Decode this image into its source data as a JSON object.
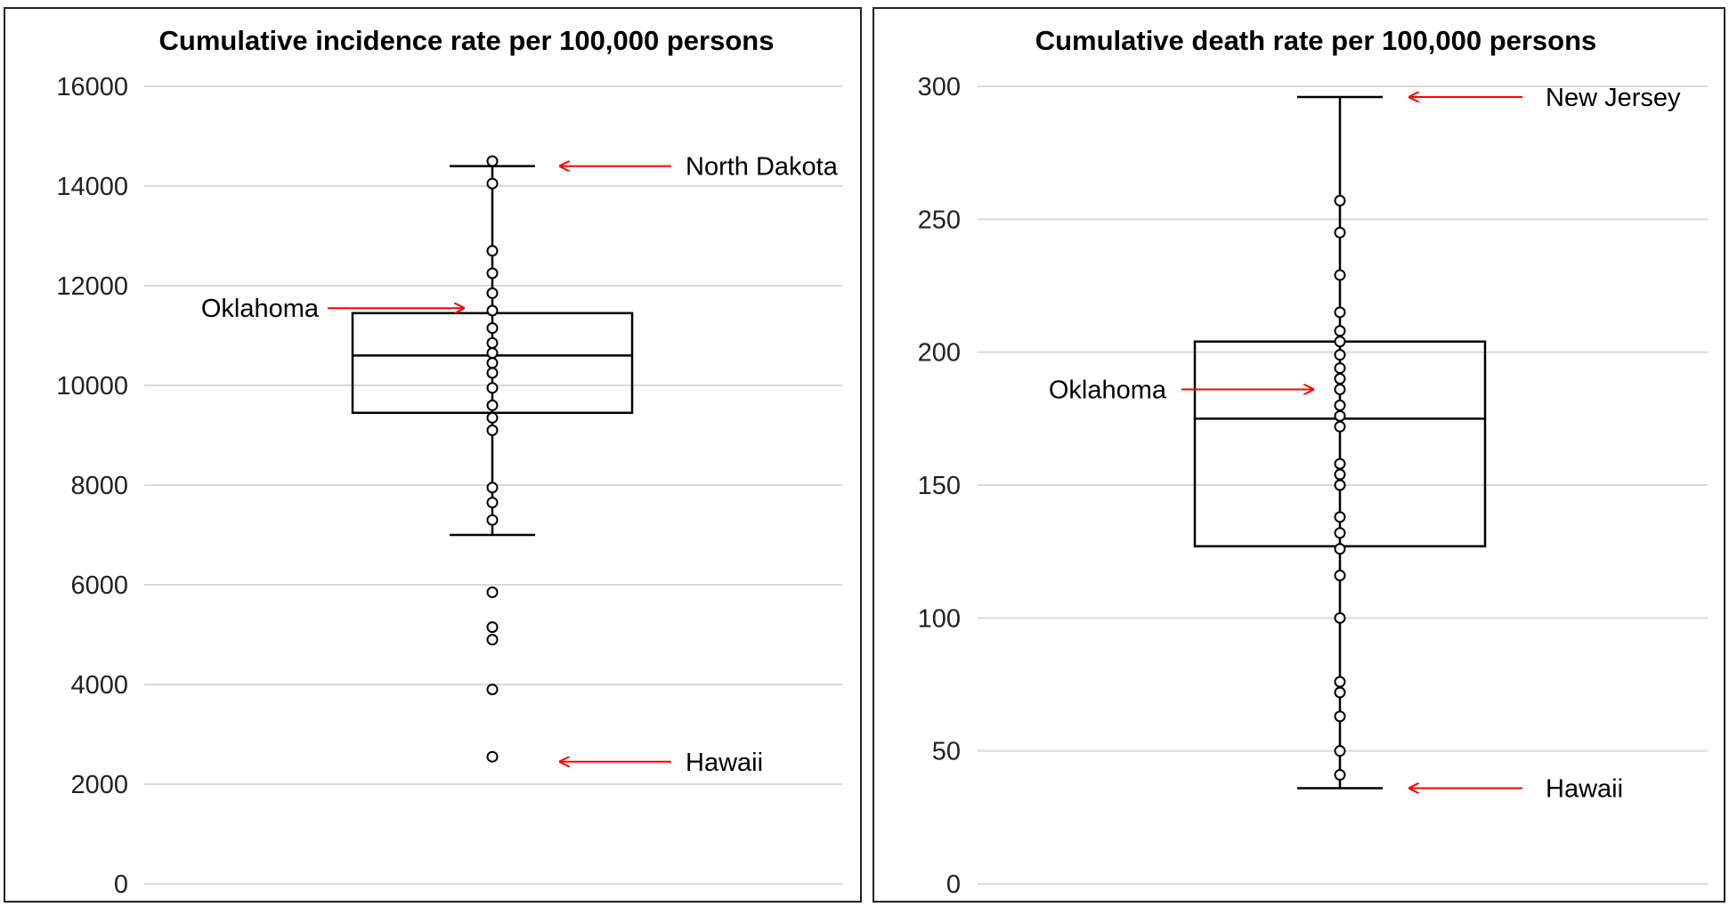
{
  "chart_data": [
    {
      "type": "box",
      "title": "Cumulative incidence rate per 100,000 persons",
      "xlabel": "",
      "ylabel": "",
      "ylim": [
        0,
        16000
      ],
      "yticks": [
        0,
        2000,
        4000,
        6000,
        8000,
        10000,
        12000,
        14000,
        16000
      ],
      "grid": true,
      "box": {
        "whisker_low": 7000,
        "q1": 9450,
        "median": 10600,
        "q3": 11450,
        "whisker_high": 14400
      },
      "points": [
        14500,
        14050,
        12700,
        12250,
        11850,
        11500,
        11150,
        10850,
        10650,
        10450,
        10250,
        9950,
        9600,
        9350,
        9100,
        7950,
        7650,
        7300,
        5850,
        5150,
        4900,
        3900,
        2550
      ],
      "annotations": [
        {
          "label": "North Dakota",
          "value": 14400,
          "side": "right"
        },
        {
          "label": "Oklahoma",
          "value": 11550,
          "side": "left"
        },
        {
          "label": "Hawaii",
          "value": 2450,
          "side": "right"
        }
      ],
      "colors": {
        "box": "#000000",
        "grid": "#d9d9d9",
        "arrow": "#ff0000"
      }
    },
    {
      "type": "box",
      "title": "Cumulative death rate per 100,000 persons",
      "xlabel": "",
      "ylabel": "",
      "ylim": [
        0,
        300
      ],
      "yticks": [
        0,
        50,
        100,
        150,
        200,
        250,
        300
      ],
      "grid": true,
      "box": {
        "whisker_low": 36,
        "q1": 127,
        "median": 175,
        "q3": 204,
        "whisker_high": 296
      },
      "points": [
        257,
        245,
        229,
        215,
        208,
        204,
        199,
        194,
        190,
        186,
        180,
        176,
        172,
        158,
        154,
        150,
        138,
        132,
        126,
        116,
        100,
        76,
        72,
        63,
        50,
        41
      ],
      "annotations": [
        {
          "label": "New Jersey",
          "value": 296,
          "side": "right"
        },
        {
          "label": "Oklahoma",
          "value": 186,
          "side": "left"
        },
        {
          "label": "Hawaii",
          "value": 36,
          "side": "right"
        }
      ],
      "colors": {
        "box": "#000000",
        "grid": "#d9d9d9",
        "arrow": "#ff0000"
      }
    }
  ]
}
